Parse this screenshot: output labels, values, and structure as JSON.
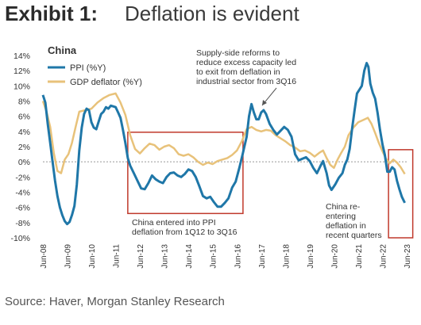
{
  "header": {
    "exhibit_label": "Exhibit 1:",
    "headline": "Deflation is evident"
  },
  "footer": {
    "source": "Source: Haver, Morgan Stanley Research"
  },
  "chart_data": {
    "type": "line",
    "region_label": "China",
    "xlabel": "",
    "ylabel": "",
    "ylim": [
      -10,
      14
    ],
    "y_ticks": [
      "14%",
      "12%",
      "10%",
      "8%",
      "6%",
      "4%",
      "2%",
      "0%",
      "-2%",
      "-4%",
      "-6%",
      "-8%",
      "-10%"
    ],
    "x_ticks": [
      "Jun-08",
      "Jun-09",
      "Jun-10",
      "Jun-11",
      "Jun-12",
      "Jun-13",
      "Jun-14",
      "Jun-15",
      "Jun-16",
      "Jun-17",
      "Jun-18",
      "Jun-19",
      "Jun-20",
      "Jun-21",
      "Jun-22",
      "Jun-23"
    ],
    "grid": false,
    "legend_position": "top-left",
    "colors": {
      "ppi": "#1f77a8",
      "gdp_deflator": "#e8c27a",
      "highlight_box": "#c0392b"
    },
    "series": [
      {
        "name": "PPI (%Y)",
        "key": "ppi",
        "points": [
          [
            2008.5,
            8.8
          ],
          [
            2008.6,
            7.8
          ],
          [
            2008.7,
            5.0
          ],
          [
            2008.8,
            2.5
          ],
          [
            2008.9,
            0.0
          ],
          [
            2009.0,
            -2.5
          ],
          [
            2009.1,
            -4.5
          ],
          [
            2009.2,
            -6.0
          ],
          [
            2009.3,
            -7.0
          ],
          [
            2009.4,
            -7.8
          ],
          [
            2009.5,
            -8.2
          ],
          [
            2009.6,
            -7.9
          ],
          [
            2009.7,
            -7.0
          ],
          [
            2009.8,
            -5.8
          ],
          [
            2009.9,
            -3.0
          ],
          [
            2010.0,
            1.5
          ],
          [
            2010.1,
            4.5
          ],
          [
            2010.2,
            6.3
          ],
          [
            2010.3,
            7.0
          ],
          [
            2010.4,
            6.8
          ],
          [
            2010.5,
            5.2
          ],
          [
            2010.6,
            4.5
          ],
          [
            2010.7,
            4.3
          ],
          [
            2010.8,
            5.3
          ],
          [
            2010.9,
            6.3
          ],
          [
            2011.0,
            6.6
          ],
          [
            2011.1,
            7.2
          ],
          [
            2011.2,
            7.0
          ],
          [
            2011.3,
            7.4
          ],
          [
            2011.4,
            7.3
          ],
          [
            2011.5,
            7.2
          ],
          [
            2011.6,
            6.5
          ],
          [
            2011.7,
            5.8
          ],
          [
            2011.8,
            4.2
          ],
          [
            2011.9,
            2.5
          ],
          [
            2012.0,
            0.5
          ],
          [
            2012.1,
            -0.5
          ],
          [
            2012.25,
            -1.5
          ],
          [
            2012.4,
            -2.5
          ],
          [
            2012.55,
            -3.5
          ],
          [
            2012.7,
            -3.6
          ],
          [
            2012.85,
            -2.8
          ],
          [
            2013.0,
            -1.8
          ],
          [
            2013.15,
            -2.3
          ],
          [
            2013.3,
            -2.6
          ],
          [
            2013.45,
            -2.8
          ],
          [
            2013.6,
            -2.0
          ],
          [
            2013.75,
            -1.5
          ],
          [
            2013.9,
            -1.4
          ],
          [
            2014.05,
            -1.8
          ],
          [
            2014.2,
            -2.0
          ],
          [
            2014.35,
            -1.6
          ],
          [
            2014.5,
            -1.0
          ],
          [
            2014.65,
            -1.2
          ],
          [
            2014.8,
            -2.0
          ],
          [
            2014.95,
            -3.2
          ],
          [
            2015.1,
            -4.5
          ],
          [
            2015.25,
            -4.8
          ],
          [
            2015.4,
            -4.6
          ],
          [
            2015.55,
            -5.3
          ],
          [
            2015.7,
            -5.9
          ],
          [
            2015.85,
            -5.9
          ],
          [
            2016.0,
            -5.4
          ],
          [
            2016.15,
            -4.8
          ],
          [
            2016.3,
            -3.4
          ],
          [
            2016.45,
            -2.6
          ],
          [
            2016.6,
            -0.8
          ],
          [
            2016.75,
            1.2
          ],
          [
            2016.9,
            3.3
          ],
          [
            2017.0,
            6.0
          ],
          [
            2017.1,
            7.6
          ],
          [
            2017.2,
            6.5
          ],
          [
            2017.3,
            5.6
          ],
          [
            2017.4,
            5.6
          ],
          [
            2017.5,
            6.5
          ],
          [
            2017.6,
            6.8
          ],
          [
            2017.7,
            6.3
          ],
          [
            2017.85,
            5.0
          ],
          [
            2018.0,
            4.2
          ],
          [
            2018.15,
            3.6
          ],
          [
            2018.3,
            4.1
          ],
          [
            2018.45,
            4.6
          ],
          [
            2018.6,
            4.2
          ],
          [
            2018.75,
            3.3
          ],
          [
            2018.9,
            1.0
          ],
          [
            2019.05,
            0.2
          ],
          [
            2019.2,
            0.4
          ],
          [
            2019.35,
            0.6
          ],
          [
            2019.5,
            0.1
          ],
          [
            2019.65,
            -0.8
          ],
          [
            2019.8,
            -1.5
          ],
          [
            2019.95,
            -0.5
          ],
          [
            2020.05,
            0.1
          ],
          [
            2020.2,
            -1.5
          ],
          [
            2020.3,
            -3.1
          ],
          [
            2020.4,
            -3.7
          ],
          [
            2020.55,
            -3.0
          ],
          [
            2020.7,
            -2.1
          ],
          [
            2020.85,
            -1.5
          ],
          [
            2020.95,
            -0.4
          ],
          [
            2021.05,
            0.3
          ],
          [
            2021.15,
            1.7
          ],
          [
            2021.25,
            4.4
          ],
          [
            2021.35,
            6.8
          ],
          [
            2021.45,
            9.0
          ],
          [
            2021.55,
            9.5
          ],
          [
            2021.65,
            10.0
          ],
          [
            2021.75,
            12.0
          ],
          [
            2021.85,
            13.0
          ],
          [
            2021.92,
            12.5
          ],
          [
            2022.0,
            10.3
          ],
          [
            2022.1,
            9.1
          ],
          [
            2022.2,
            8.3
          ],
          [
            2022.3,
            6.4
          ],
          [
            2022.4,
            4.2
          ],
          [
            2022.5,
            2.3
          ],
          [
            2022.6,
            0.9
          ],
          [
            2022.7,
            -1.3
          ],
          [
            2022.8,
            -1.3
          ],
          [
            2022.9,
            -0.7
          ],
          [
            2023.0,
            -1.0
          ],
          [
            2023.1,
            -2.5
          ],
          [
            2023.2,
            -3.6
          ],
          [
            2023.3,
            -4.6
          ],
          [
            2023.42,
            -5.4
          ]
        ]
      },
      {
        "name": "GDP deflator (%Y)",
        "key": "gdp_deflator",
        "points": [
          [
            2008.5,
            8.0
          ],
          [
            2008.65,
            6.6
          ],
          [
            2008.8,
            4.6
          ],
          [
            2008.95,
            1.2
          ],
          [
            2009.1,
            -1.2
          ],
          [
            2009.25,
            -1.5
          ],
          [
            2009.4,
            0.3
          ],
          [
            2009.55,
            1.0
          ],
          [
            2009.7,
            2.5
          ],
          [
            2009.85,
            4.6
          ],
          [
            2010.0,
            6.6
          ],
          [
            2010.25,
            6.8
          ],
          [
            2010.5,
            7.0
          ],
          [
            2010.75,
            7.8
          ],
          [
            2011.0,
            8.4
          ],
          [
            2011.25,
            8.8
          ],
          [
            2011.5,
            9.0
          ],
          [
            2011.7,
            7.8
          ],
          [
            2011.9,
            6.2
          ],
          [
            2012.1,
            3.5
          ],
          [
            2012.3,
            1.7
          ],
          [
            2012.5,
            1.1
          ],
          [
            2012.7,
            1.8
          ],
          [
            2012.9,
            2.4
          ],
          [
            2013.1,
            2.2
          ],
          [
            2013.3,
            1.6
          ],
          [
            2013.5,
            2.0
          ],
          [
            2013.7,
            2.2
          ],
          [
            2013.9,
            1.8
          ],
          [
            2014.1,
            1.0
          ],
          [
            2014.3,
            0.8
          ],
          [
            2014.5,
            1.0
          ],
          [
            2014.7,
            0.6
          ],
          [
            2014.9,
            0.0
          ],
          [
            2015.1,
            -0.4
          ],
          [
            2015.3,
            -0.1
          ],
          [
            2015.5,
            -0.3
          ],
          [
            2015.7,
            0.1
          ],
          [
            2015.9,
            0.3
          ],
          [
            2016.1,
            0.5
          ],
          [
            2016.3,
            0.9
          ],
          [
            2016.5,
            1.5
          ],
          [
            2016.7,
            2.7
          ],
          [
            2016.9,
            4.3
          ],
          [
            2017.1,
            4.6
          ],
          [
            2017.3,
            4.2
          ],
          [
            2017.5,
            4.0
          ],
          [
            2017.7,
            4.2
          ],
          [
            2017.9,
            4.1
          ],
          [
            2018.1,
            3.5
          ],
          [
            2018.3,
            3.1
          ],
          [
            2018.5,
            2.7
          ],
          [
            2018.7,
            2.2
          ],
          [
            2018.9,
            1.9
          ],
          [
            2019.1,
            1.4
          ],
          [
            2019.3,
            1.5
          ],
          [
            2019.5,
            1.2
          ],
          [
            2019.7,
            0.7
          ],
          [
            2019.9,
            1.2
          ],
          [
            2020.05,
            1.5
          ],
          [
            2020.2,
            0.5
          ],
          [
            2020.35,
            -0.4
          ],
          [
            2020.5,
            -0.8
          ],
          [
            2020.65,
            0.3
          ],
          [
            2020.8,
            1.2
          ],
          [
            2020.95,
            2.0
          ],
          [
            2021.1,
            3.5
          ],
          [
            2021.3,
            4.5
          ],
          [
            2021.5,
            5.2
          ],
          [
            2021.7,
            5.5
          ],
          [
            2021.9,
            5.8
          ],
          [
            2022.05,
            5.0
          ],
          [
            2022.2,
            3.8
          ],
          [
            2022.35,
            2.5
          ],
          [
            2022.5,
            1.4
          ],
          [
            2022.65,
            0.4
          ],
          [
            2022.8,
            -0.2
          ],
          [
            2022.95,
            0.3
          ],
          [
            2023.1,
            -0.1
          ],
          [
            2023.25,
            -0.7
          ],
          [
            2023.42,
            -1.6
          ]
        ]
      }
    ],
    "highlight_boxes": [
      {
        "x_from": 2012.0,
        "x_to": 2016.75,
        "y_from": -6.8,
        "y_to": 3.9
      },
      {
        "x_from": 2022.75,
        "x_to": 2023.75,
        "y_from": -10.0,
        "y_to": 1.6
      }
    ],
    "annotations": {
      "supply_side": [
        "Supply-side reforms to",
        "reduce excess capacity led",
        "to exit from deflation in",
        "industrial sector from 3Q16"
      ],
      "ppi_deflation": [
        "China entered into PPI",
        "deflation from 1Q12 to 3Q16"
      ],
      "re_entering": [
        "China re-",
        "entering",
        "deflation in",
        "recent quarters"
      ]
    }
  }
}
